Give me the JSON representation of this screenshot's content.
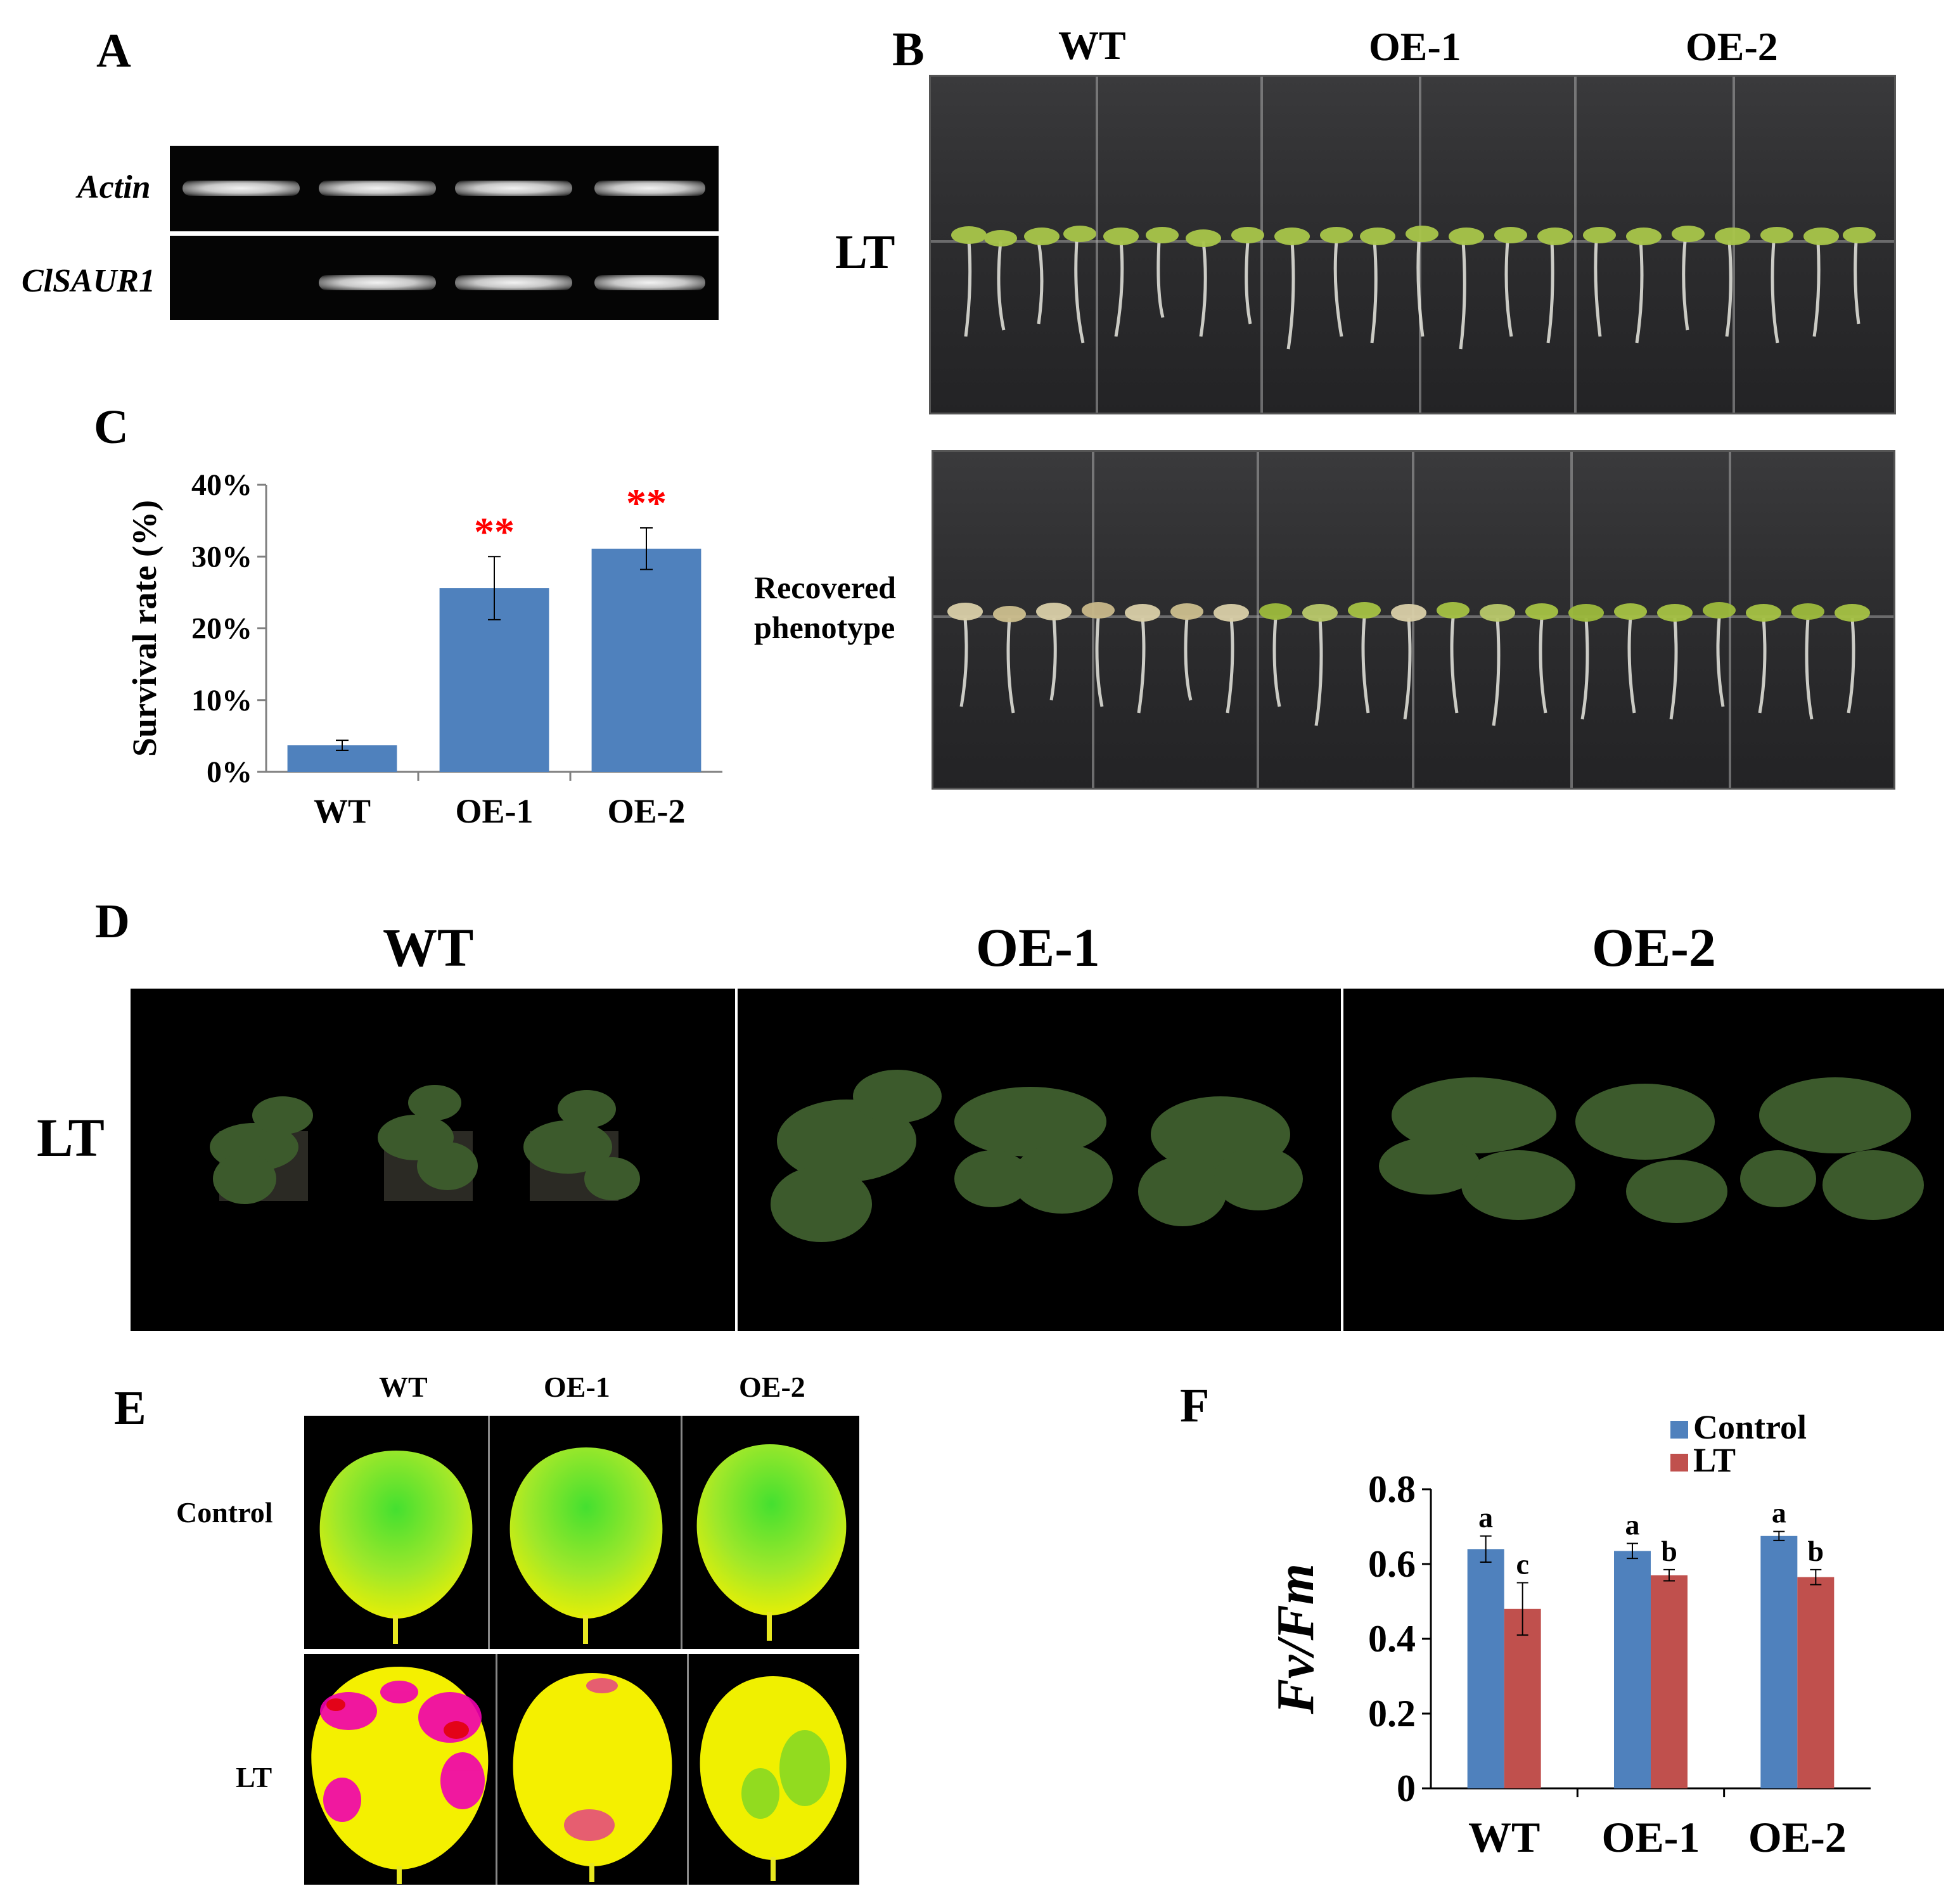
{
  "panels": {
    "a": {
      "label": "A",
      "rows": [
        "Actin",
        "ClSAUR1"
      ],
      "bands": [
        [
          true,
          true,
          true,
          true
        ],
        [
          false,
          true,
          true,
          true
        ]
      ]
    },
    "b": {
      "label": "B",
      "columns": [
        "WT",
        "OE-1",
        "OE-2"
      ],
      "rows": [
        "LT",
        "Recovered",
        "phenotype"
      ]
    },
    "c": {
      "label": "C"
    },
    "d": {
      "label": "D",
      "columns": [
        "WT",
        "OE-1",
        "OE-2"
      ],
      "row": "LT"
    },
    "e": {
      "label": "E",
      "columns": [
        "WT",
        "OE-1",
        "OE-2"
      ],
      "rows": [
        "Control",
        "LT"
      ]
    },
    "f": {
      "label": "F"
    }
  },
  "chart_data": [
    {
      "id": "C",
      "type": "bar",
      "categories": [
        "WT",
        "OE-1",
        "OE-2"
      ],
      "values": [
        3.7,
        25.6,
        31.1
      ],
      "errors": [
        0.7,
        4.4,
        2.9
      ],
      "significance": [
        "",
        "**",
        "**"
      ],
      "ylabel": "Survival rate (%)",
      "ylim": [
        0,
        40
      ],
      "yticks": [
        "0%",
        "10%",
        "20%",
        "30%",
        "40%"
      ],
      "colors": {
        "bar": "#4f81bd",
        "significance": "#ff0000"
      },
      "grid": false
    },
    {
      "id": "F",
      "type": "bar",
      "categories": [
        "WT",
        "OE-1",
        "OE-2"
      ],
      "series": [
        {
          "name": "Control",
          "values": [
            0.64,
            0.635,
            0.675
          ],
          "errors": [
            0.035,
            0.02,
            0.012
          ],
          "letters": [
            "a",
            "a",
            "a"
          ],
          "color": "#4f81bd"
        },
        {
          "name": "LT",
          "values": [
            0.48,
            0.57,
            0.565
          ],
          "errors": [
            0.07,
            0.015,
            0.02
          ],
          "letters": [
            "c",
            "b",
            "b"
          ],
          "color": "#c0504d"
        }
      ],
      "ylabel": "Fv/Fm",
      "ylim": [
        0,
        0.8
      ],
      "yticks": [
        "0",
        "0.2",
        "0.4",
        "0.6",
        "0.8"
      ],
      "legend": "top-right",
      "grid": false
    }
  ]
}
